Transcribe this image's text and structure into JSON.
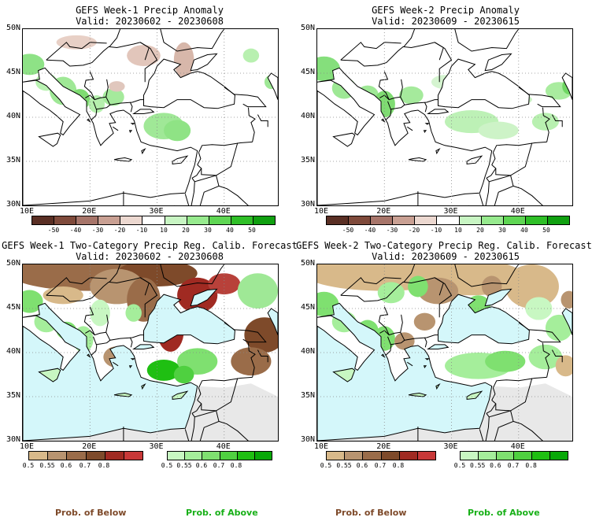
{
  "panels": [
    {
      "title": "GEFS Week-1 Precip Anomaly",
      "valid": "Valid: 20230602 - 20230608"
    },
    {
      "title": "GEFS Week-2 Precip Anomaly",
      "valid": "Valid: 20230609 - 20230615"
    },
    {
      "title": "GEFS Week-1 Two-Category Precip Reg. Calib. Forecast",
      "valid": "Valid: 20230602 - 20230608"
    },
    {
      "title": "GEFS Week-2 Two-Category Precip Reg. Calib. Forecast",
      "valid": "Valid: 20230609 - 20230615"
    }
  ],
  "lat_labels": [
    "50N",
    "45N",
    "40N",
    "35N",
    "30N"
  ],
  "lon_labels": [
    "10E",
    "20E",
    "30E",
    "40E"
  ],
  "anomaly_colorbar": {
    "labels": [
      "-50",
      "-40",
      "-30",
      "-20",
      "-10",
      "10",
      "20",
      "30",
      "40",
      "50"
    ],
    "colors": [
      "#5a2f24",
      "#7f4a3b",
      "#a7756a",
      "#c9a093",
      "#ecd8d0",
      "#ffffff",
      "#c8f5c3",
      "#97ea8e",
      "#5fd653",
      "#2fbf27",
      "#10a010"
    ]
  },
  "prob_below_colorbar": {
    "labels": [
      "0.5",
      "0.55",
      "0.6",
      "0.7",
      "0.8"
    ],
    "colors": [
      "#d8b98a",
      "#b89470",
      "#9a6c49",
      "#7e4a2a",
      "#a02a22",
      "#c83838"
    ]
  },
  "prob_above_colorbar": {
    "labels": [
      "0.5",
      "0.55",
      "0.6",
      "0.7",
      "0.8"
    ],
    "colors": [
      "#c8f7c2",
      "#a5ee9b",
      "#7fe070",
      "#4fd040",
      "#1fbf12",
      "#08a808"
    ]
  },
  "footer": {
    "below": "Prob. of Below",
    "above": "Prob. of Above"
  },
  "colors": {
    "sea_light_blue": "#d4f7fa",
    "land_grey": "#e8e8e8",
    "coast": "#000000"
  }
}
